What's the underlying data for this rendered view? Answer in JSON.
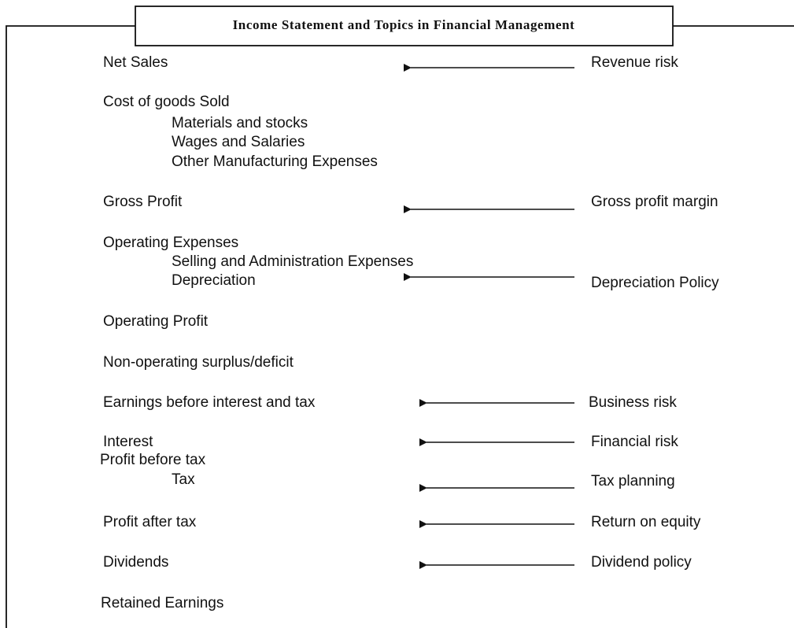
{
  "title": "Income Statement and Topics in Financial Management",
  "items": [
    "Net Sales",
    "Cost of goods Sold",
    "Materials and stocks",
    "Wages and Salaries",
    "Other Manufacturing Expenses",
    "Gross Profit",
    "Operating Expenses",
    "Selling and Administration Expenses",
    "Depreciation",
    "Operating Profit",
    "Non-operating surplus/deficit",
    "Earnings before interest and tax",
    "Interest",
    "Profit before tax",
    "Tax",
    "Profit after tax",
    "Dividends",
    "Retained Earnings"
  ],
  "topics": [
    "Revenue risk",
    "Gross profit margin",
    "Depreciation Policy",
    "Business risk",
    "Financial risk",
    "Tax planning",
    "Return on equity",
    "Dividend policy"
  ]
}
